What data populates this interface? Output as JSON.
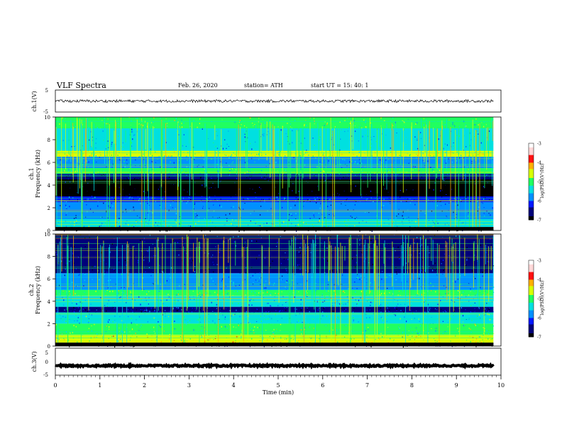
{
  "header": {
    "title": "VLF Spectra",
    "date": "Feb. 26, 2020",
    "station": "station= ATH",
    "start": "start  UT  =    15: 40: 1"
  },
  "colorbars": [
    {
      "label": "log(PSD)(V²/Hz)",
      "ticks": [
        "-3",
        "-4",
        "-5",
        "-6",
        "-7"
      ]
    },
    {
      "label": "log(PSD)(V²/Hz)",
      "ticks": [
        "-3",
        "-4",
        "-5",
        "-6",
        "-7"
      ]
    }
  ],
  "colors": {
    "colormap": [
      "#000000",
      "#00007a",
      "#0018ff",
      "#0090ff",
      "#00e0e0",
      "#20ff60",
      "#d8ff00",
      "#ffb000",
      "#ff1010",
      "#ffd8d8",
      "#ffffff"
    ],
    "wave": "#000000"
  },
  "chart_data": [
    {
      "type": "line",
      "panel": "ch1-waveform",
      "ylabel": "ch.1(V)",
      "ylim": [
        -5,
        5
      ],
      "yticks": [
        "5",
        "-5"
      ],
      "x_range_min": [
        0,
        9.83
      ],
      "series": [
        {
          "mean": 0,
          "amplitude_range": [
            -0.6,
            0.6
          ]
        }
      ]
    },
    {
      "type": "heatmap",
      "panel": "ch1-spectrogram",
      "ylabel_lines": [
        "ch.1",
        "Frequency  (kHz)"
      ],
      "ylim": [
        0,
        10
      ],
      "yticks": [
        "0",
        "2",
        "4",
        "6",
        "8",
        "10"
      ],
      "clim": [
        -7,
        -3
      ],
      "freq_bands_khz": [
        {
          "range": [
            9,
            10
          ],
          "level": -5.0
        },
        {
          "range": [
            7,
            9
          ],
          "level": -5.6
        },
        {
          "range": [
            6.5,
            7
          ],
          "level": -4.8
        },
        {
          "range": [
            5.5,
            6.5
          ],
          "level": -5.7
        },
        {
          "range": [
            5,
            5.5
          ],
          "level": -5.2
        },
        {
          "range": [
            4.5,
            5
          ],
          "level": -6.8
        },
        {
          "range": [
            3,
            4.5
          ],
          "level": -6.9
        },
        {
          "range": [
            2.5,
            3
          ],
          "level": -6.2
        },
        {
          "range": [
            1,
            2.5
          ],
          "level": -6.0
        },
        {
          "range": [
            0.3,
            1
          ],
          "level": -5.4
        },
        {
          "range": [
            0,
            0.3
          ],
          "level": -7.0
        }
      ]
    },
    {
      "type": "heatmap",
      "panel": "ch2-spectrogram",
      "ylabel_lines": [
        "ch.2",
        "Frequency  (kHz)"
      ],
      "ylim": [
        0,
        10
      ],
      "yticks": [
        "0",
        "2",
        "4",
        "6",
        "8",
        "10"
      ],
      "clim": [
        -7,
        -3
      ],
      "freq_bands_khz": [
        {
          "range": [
            8,
            10
          ],
          "level": -6.4
        },
        {
          "range": [
            6.5,
            8
          ],
          "level": -6.5
        },
        {
          "range": [
            5,
            6.5
          ],
          "level": -5.8
        },
        {
          "range": [
            4.5,
            5
          ],
          "level": -5.0
        },
        {
          "range": [
            3.5,
            4.5
          ],
          "level": -5.6
        },
        {
          "range": [
            3,
            3.5
          ],
          "level": -6.4
        },
        {
          "range": [
            2,
            3
          ],
          "level": -5.4
        },
        {
          "range": [
            1,
            2
          ],
          "level": -5.0
        },
        {
          "range": [
            0.3,
            1
          ],
          "level": -4.6
        },
        {
          "range": [
            0,
            0.3
          ],
          "level": -7.0
        }
      ]
    },
    {
      "type": "line",
      "panel": "ch3-waveform",
      "ylabel": "ch.3(V)",
      "xlabel": "Time  (min)",
      "ylim": [
        -5,
        5
      ],
      "yticks": [
        "5",
        "0",
        "-5"
      ],
      "xlim": [
        0,
        10
      ],
      "xticks": [
        "0",
        "1",
        "2",
        "3",
        "4",
        "5",
        "6",
        "7",
        "8",
        "9",
        "10"
      ],
      "series": [
        {
          "mean": -1.5,
          "amplitude_range": [
            -0.3,
            0.3
          ]
        }
      ]
    }
  ]
}
